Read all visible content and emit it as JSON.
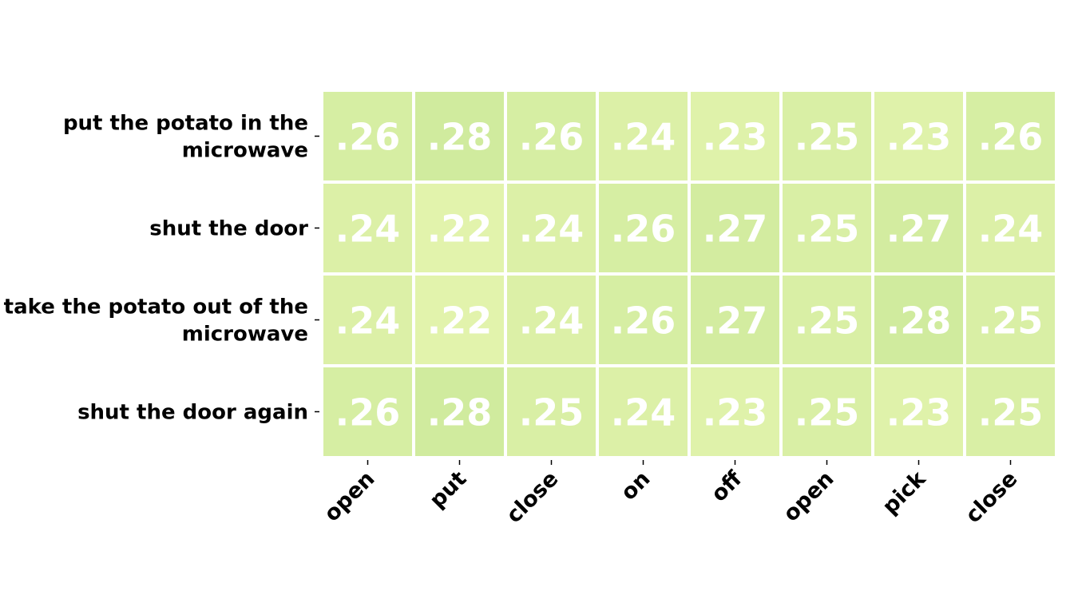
{
  "chart_data": {
    "type": "heatmap",
    "title": "",
    "xlabel": "",
    "ylabel": "",
    "rows": [
      "put the potato in the microwave",
      "shut the door",
      "take the potato out of the microwave",
      "shut the door again"
    ],
    "row_label_lines": [
      [
        "put the potato in the",
        "microwave"
      ],
      [
        "shut the door"
      ],
      [
        "take the potato out of the",
        "microwave"
      ],
      [
        "shut the door again"
      ]
    ],
    "columns": [
      "open",
      "put",
      "close",
      "on",
      "off",
      "open",
      "pick",
      "close"
    ],
    "values": [
      [
        0.26,
        0.28,
        0.26,
        0.24,
        0.23,
        0.25,
        0.23,
        0.26
      ],
      [
        0.24,
        0.22,
        0.24,
        0.26,
        0.27,
        0.25,
        0.27,
        0.24
      ],
      [
        0.24,
        0.22,
        0.24,
        0.26,
        0.27,
        0.25,
        0.28,
        0.25
      ],
      [
        0.26,
        0.28,
        0.25,
        0.24,
        0.23,
        0.25,
        0.23,
        0.25
      ]
    ],
    "value_labels": [
      [
        ".26",
        ".28",
        ".26",
        ".24",
        ".23",
        ".25",
        ".23",
        ".26"
      ],
      [
        ".24",
        ".22",
        ".24",
        ".26",
        ".27",
        ".25",
        ".27",
        ".24"
      ],
      [
        ".24",
        ".22",
        ".24",
        ".26",
        ".27",
        ".25",
        ".28",
        ".25"
      ],
      [
        ".26",
        ".28",
        ".25",
        ".24",
        ".23",
        ".25",
        ".23",
        ".25"
      ]
    ],
    "color_range": [
      0.22,
      0.28
    ],
    "color_low": "#e2f3ac",
    "color_high": "#d0eb9e",
    "cell_text_color": "#ffffff",
    "grid_line_color": "#ffffff",
    "legend": "none"
  }
}
